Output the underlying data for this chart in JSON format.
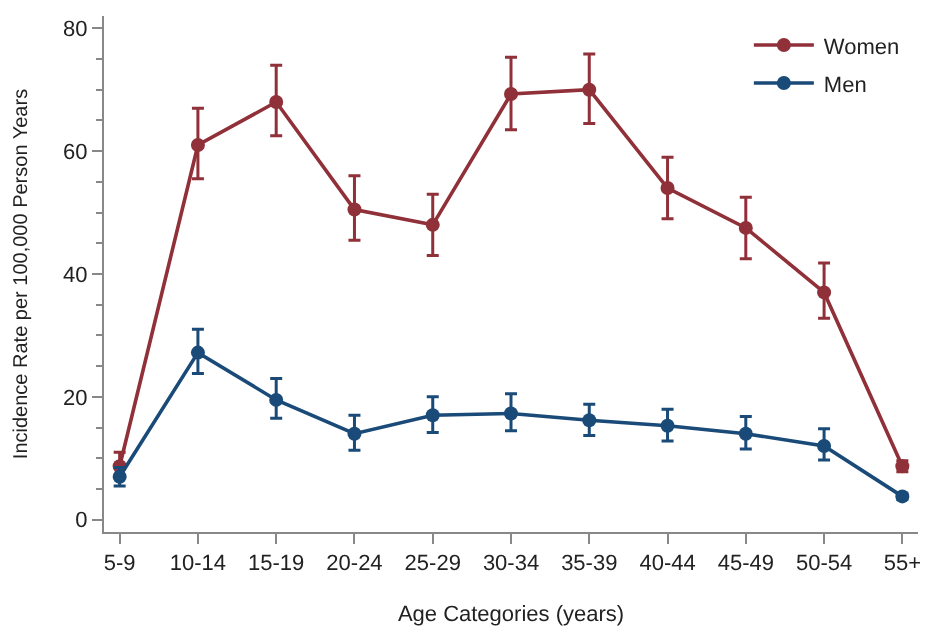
{
  "chart_data": {
    "type": "line",
    "xlabel": "Age Categories (years)",
    "ylabel": "Incidence Rate per 100,000 Person Years",
    "categories": [
      "5-9",
      "10-14",
      "15-19",
      "20-24",
      "25-29",
      "30-34",
      "35-39",
      "40-44",
      "45-49",
      "50-54",
      "55+"
    ],
    "series": [
      {
        "name": "Women",
        "color": "#903038",
        "values": [
          8.7,
          61,
          68,
          50.5,
          48,
          69.3,
          70,
          54,
          47.5,
          37,
          8.7
        ],
        "errors": [
          [
            7,
            11
          ],
          [
            55.5,
            67
          ],
          [
            62.5,
            74
          ],
          [
            45.5,
            56
          ],
          [
            43,
            53
          ],
          [
            63.5,
            75.3
          ],
          [
            64.5,
            75.8
          ],
          [
            49,
            59
          ],
          [
            42.5,
            52.5
          ],
          [
            32.8,
            41.8
          ],
          [
            7.8,
            9.6
          ]
        ]
      },
      {
        "name": "Men",
        "color": "#1a4a78",
        "values": [
          7,
          27.2,
          19.5,
          14,
          17,
          17.3,
          16.2,
          15.3,
          14,
          12,
          3.8
        ],
        "errors": [
          [
            5.5,
            8.5
          ],
          [
            23.8,
            31
          ],
          [
            16.5,
            23
          ],
          [
            11.3,
            17
          ],
          [
            14.2,
            20
          ],
          [
            14.5,
            20.5
          ],
          [
            13.7,
            18.8
          ],
          [
            12.8,
            18
          ],
          [
            11.5,
            16.8
          ],
          [
            9.7,
            14.8
          ],
          [
            3.3,
            4.3
          ]
        ]
      }
    ],
    "ylim": [
      -2,
      82
    ],
    "yticks": [
      0,
      20,
      40,
      60,
      80
    ],
    "legend": "top right",
    "marker": "circle",
    "line_style": "solid"
  }
}
